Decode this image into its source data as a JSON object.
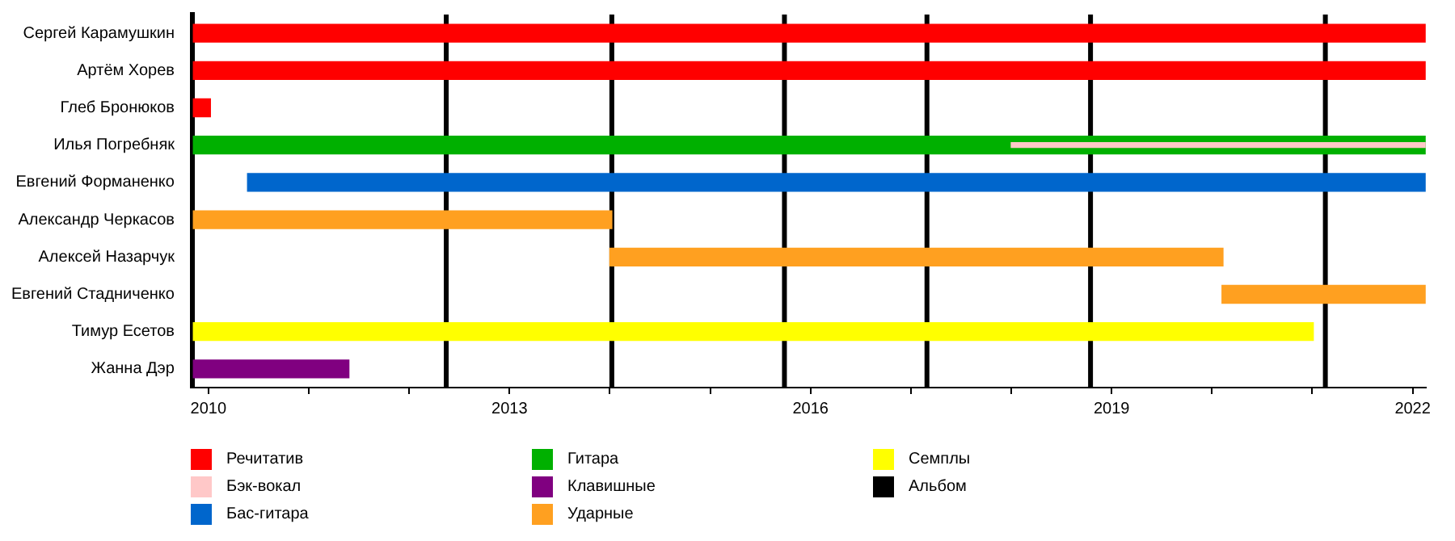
{
  "chart_data": {
    "type": "bar",
    "orientation": "horizontal",
    "categories": [
      "Сергей Карамушкин",
      "Артём Хорев",
      "Глеб Бронюков",
      "Илья Погребняк",
      "Евгений Форманенко",
      "Александр Черкасов",
      "Алексей Назарчук",
      "Евгений Стадниченко",
      "Тимур Есетов",
      "Жанна Дэр"
    ],
    "series": [
      {
        "name": "Речитатив",
        "color": "#ff0000",
        "base": [
          2009.85,
          2009.85,
          2009.85,
          null,
          null,
          null,
          null,
          null,
          null,
          null
        ],
        "values": [
          12.28,
          12.28,
          0.17,
          null,
          null,
          null,
          null,
          null,
          null,
          null
        ]
      },
      {
        "name": "Бэк-вокал",
        "color": "#ffc8c8",
        "base": [
          null,
          null,
          null,
          2018.0,
          null,
          null,
          null,
          null,
          null,
          null
        ],
        "values": [
          null,
          null,
          null,
          4.13,
          null,
          null,
          null,
          null,
          null,
          null
        ]
      },
      {
        "name": "Бас-гитара",
        "color": "#0066cc",
        "base": [
          null,
          null,
          null,
          null,
          2010.39,
          null,
          null,
          null,
          null,
          null
        ],
        "values": [
          null,
          null,
          null,
          null,
          11.74,
          null,
          null,
          null,
          null,
          null
        ]
      },
      {
        "name": "Гитара",
        "color": "#00b000",
        "base": [
          null,
          null,
          null,
          2009.85,
          null,
          null,
          null,
          null,
          null,
          null
        ],
        "values": [
          null,
          null,
          null,
          12.28,
          null,
          null,
          null,
          null,
          null,
          null
        ]
      },
      {
        "name": "Клавишные",
        "color": "#800080",
        "base": [
          null,
          null,
          null,
          null,
          null,
          null,
          null,
          null,
          null,
          2009.85
        ],
        "values": [
          null,
          null,
          null,
          null,
          null,
          null,
          null,
          null,
          null,
          1.55
        ]
      },
      {
        "name": "Ударные",
        "color": "#ffa020",
        "base": [
          null,
          null,
          null,
          null,
          null,
          2009.85,
          2014.0,
          2020.1,
          null,
          null
        ],
        "values": [
          null,
          null,
          null,
          null,
          null,
          4.17,
          6.11,
          2.03,
          null,
          null
        ]
      },
      {
        "name": "Семплы",
        "color": "#ffff00",
        "base": [
          null,
          null,
          null,
          null,
          null,
          null,
          null,
          null,
          2009.85,
          null
        ],
        "values": [
          null,
          null,
          null,
          null,
          null,
          null,
          null,
          null,
          11.16,
          null
        ]
      }
    ],
    "ref_lines": [
      {
        "axis": "x",
        "value": 2012.37,
        "label": "Альбом",
        "color": "#000000"
      },
      {
        "axis": "x",
        "value": 2014.02,
        "label": null,
        "color": "#000000"
      },
      {
        "axis": "x",
        "value": 2015.74,
        "label": null,
        "color": "#000000"
      },
      {
        "axis": "x",
        "value": 2017.16,
        "label": null,
        "color": "#000000"
      },
      {
        "axis": "x",
        "value": 2018.79,
        "label": null,
        "color": "#000000"
      },
      {
        "axis": "x",
        "value": 2021.13,
        "label": null,
        "color": "#000000"
      }
    ],
    "xlim": [
      2009.84,
      2022.13
    ],
    "xticks": [
      2010,
      {
        "value": 2011,
        "label": null
      },
      {
        "value": 2012,
        "label": null
      },
      2013,
      {
        "value": 2014,
        "label": null
      },
      {
        "value": 2015,
        "label": null
      },
      2016,
      {
        "value": 2017,
        "label": null
      },
      {
        "value": 2018,
        "label": null
      },
      2019,
      {
        "value": 2020,
        "label": null
      },
      {
        "value": 2021,
        "label": null
      },
      2022
    ],
    "grid": false,
    "legend": "bottom"
  }
}
